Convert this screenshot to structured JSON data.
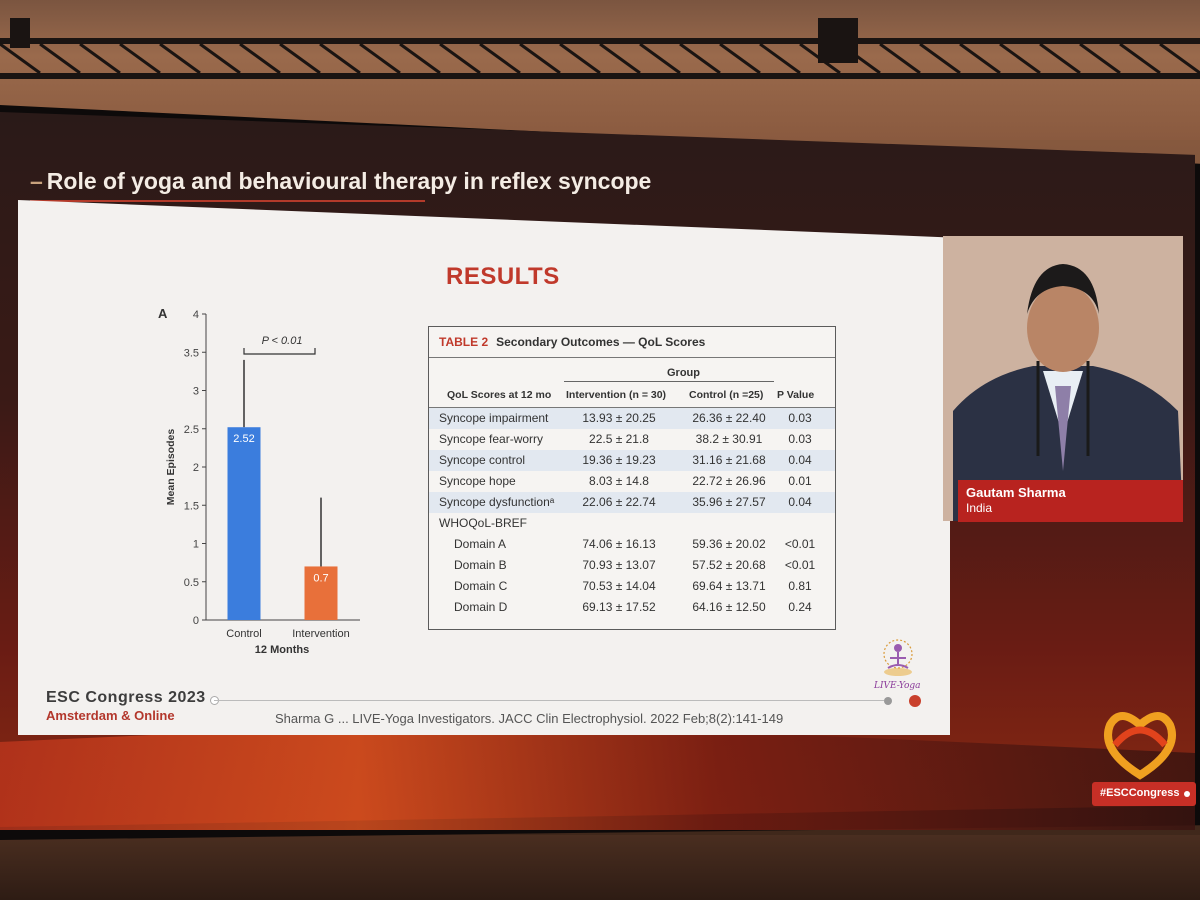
{
  "slide": {
    "title": "Role of yoga and behavioural therapy in reflex syncope",
    "results_heading": "RESULTS",
    "citation": "Sharma G ... LIVE-Yoga Investigators. JACC Clin Electrophysiol. 2022 Feb;8(2):141-149",
    "brand_line1": "ESC Congress 2023",
    "brand_line2": "Amsterdam & Online",
    "logo_text": "LIVE-Yoga"
  },
  "chart_data": {
    "type": "bar",
    "panel_label": "A",
    "ylabel": "Mean Episodes",
    "xlabel": "12 Months",
    "categories": [
      "Control",
      "Intervention"
    ],
    "values": [
      2.52,
      0.7
    ],
    "value_labels": [
      "2.52",
      "0.7"
    ],
    "error_upper": [
      3.4,
      1.6
    ],
    "bar_colors": [
      "#3b7ddd",
      "#e8703a"
    ],
    "ylim": [
      0,
      4
    ],
    "yticks": [
      "0",
      "0.5",
      "1",
      "1.5",
      "2",
      "2.5",
      "3",
      "3.5",
      "4"
    ],
    "annotation": "P < 0.01"
  },
  "table": {
    "label": "TABLE 2",
    "title": "Secondary Outcomes — QoL Scores",
    "group_header": "Group",
    "columns": [
      "QoL Scores at 12 mo",
      "Intervention (n = 30)",
      "Control (n =25)",
      "P Value"
    ],
    "rows": [
      {
        "label": "Syncope impairment",
        "intervention": "13.93 ± 20.25",
        "control": "26.36 ± 22.40",
        "p": "0.03",
        "indent": false,
        "shaded": true
      },
      {
        "label": "Syncope fear-worry",
        "intervention": "22.5 ± 21.8",
        "control": "38.2 ± 30.91",
        "p": "0.03",
        "indent": false,
        "shaded": false
      },
      {
        "label": "Syncope control",
        "intervention": "19.36 ± 19.23",
        "control": "31.16 ± 21.68",
        "p": "0.04",
        "indent": false,
        "shaded": true
      },
      {
        "label": "Syncope hope",
        "intervention": "8.03 ± 14.8",
        "control": "22.72 ± 26.96",
        "p": "0.01",
        "indent": false,
        "shaded": false
      },
      {
        "label": "Syncope dysfunctionᵃ",
        "intervention": "22.06 ± 22.74",
        "control": "35.96 ± 27.57",
        "p": "0.04",
        "indent": false,
        "shaded": true
      },
      {
        "label": "WHOQoL-BREF",
        "intervention": "",
        "control": "",
        "p": "",
        "indent": false,
        "shaded": false
      },
      {
        "label": "Domain A",
        "intervention": "74.06 ± 16.13",
        "control": "59.36 ± 20.02",
        "p": "<0.01",
        "indent": true,
        "shaded": false
      },
      {
        "label": "Domain B",
        "intervention": "70.93 ± 13.07",
        "control": "57.52 ± 20.68",
        "p": "<0.01",
        "indent": true,
        "shaded": false
      },
      {
        "label": "Domain C",
        "intervention": "70.53 ± 14.04",
        "control": "69.64 ± 13.71",
        "p": "0.81",
        "indent": true,
        "shaded": false
      },
      {
        "label": "Domain D",
        "intervention": "69.13 ± 17.52",
        "control": "64.16 ± 12.50",
        "p": "0.24",
        "indent": true,
        "shaded": false
      }
    ]
  },
  "speaker": {
    "name": "Gautam Sharma",
    "country": "India"
  },
  "hashtag": "#ESCCongress",
  "colors": {
    "accent_red": "#c0392b",
    "control_bar": "#3b7ddd",
    "intervention_bar": "#e8703a"
  }
}
